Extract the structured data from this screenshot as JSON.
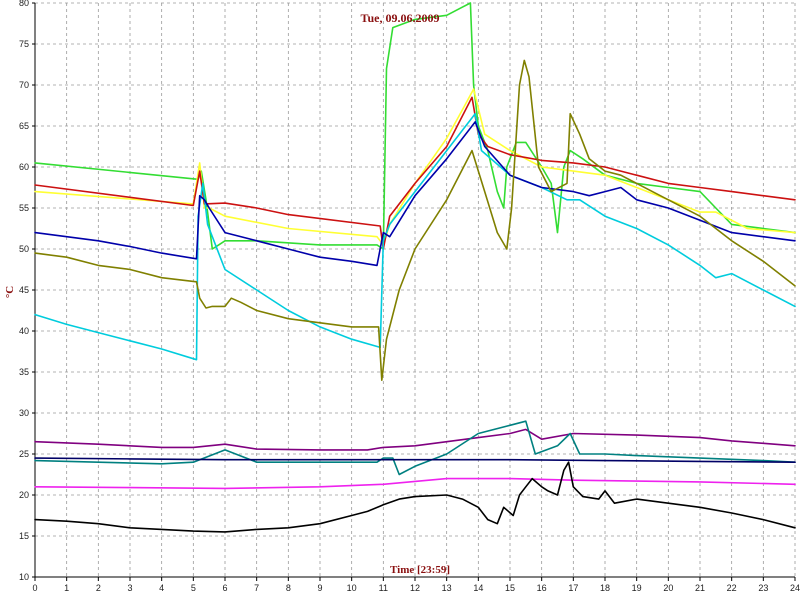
{
  "chart_data": {
    "type": "line",
    "title": "Tue, 09.06.2009",
    "xlabel": "Time [23:59]",
    "ylabel": "°C",
    "xlim": [
      0,
      24
    ],
    "ylim": [
      10,
      80
    ],
    "x_ticks": [
      0,
      1,
      2,
      3,
      4,
      5,
      6,
      7,
      8,
      9,
      10,
      11,
      12,
      13,
      14,
      15,
      16,
      17,
      18,
      19,
      20,
      21,
      22,
      23,
      24
    ],
    "y_ticks": [
      10,
      15,
      20,
      25,
      30,
      35,
      40,
      45,
      50,
      55,
      60,
      65,
      70,
      75,
      80
    ],
    "grid": true,
    "series": [
      {
        "color": "#33dd33",
        "points": [
          [
            0,
            60.5
          ],
          [
            5.15,
            58.5
          ],
          [
            5.25,
            59.5
          ],
          [
            5.4,
            56
          ],
          [
            5.6,
            50
          ],
          [
            5.8,
            50.5
          ],
          [
            6.0,
            51
          ],
          [
            7,
            51
          ],
          [
            9,
            50.5
          ],
          [
            10.8,
            50.5
          ],
          [
            11.0,
            50
          ],
          [
            11.1,
            72
          ],
          [
            11.3,
            77
          ],
          [
            12,
            78
          ],
          [
            13,
            78.5
          ],
          [
            13.5,
            79.5
          ],
          [
            13.75,
            80
          ],
          [
            13.85,
            70
          ],
          [
            14.0,
            65
          ],
          [
            14.3,
            62
          ],
          [
            14.6,
            57
          ],
          [
            14.8,
            55
          ],
          [
            14.9,
            60
          ],
          [
            15.2,
            63
          ],
          [
            15.5,
            63
          ],
          [
            16.0,
            60
          ],
          [
            16.3,
            58
          ],
          [
            16.5,
            52
          ],
          [
            16.7,
            60
          ],
          [
            16.9,
            62
          ],
          [
            17.3,
            61
          ],
          [
            18,
            59
          ],
          [
            19,
            58
          ],
          [
            20,
            57.5
          ],
          [
            21,
            57
          ],
          [
            21.5,
            55
          ],
          [
            22,
            53
          ],
          [
            23,
            52.5
          ],
          [
            24,
            52
          ]
        ]
      },
      {
        "color": "#ffff33",
        "points": [
          [
            0,
            57
          ],
          [
            5.0,
            55.5
          ],
          [
            5.2,
            60.5
          ],
          [
            5.35,
            55
          ],
          [
            5.5,
            55
          ],
          [
            6,
            54
          ],
          [
            8,
            52.5
          ],
          [
            10.8,
            51.5
          ],
          [
            11,
            50.5
          ],
          [
            11.2,
            53
          ],
          [
            12,
            58
          ],
          [
            13,
            63.5
          ],
          [
            13.5,
            67
          ],
          [
            13.85,
            69.5
          ],
          [
            14.2,
            64
          ],
          [
            15,
            62
          ],
          [
            16,
            60
          ],
          [
            17,
            59.5
          ],
          [
            18,
            59
          ],
          [
            19,
            57.5
          ],
          [
            20,
            56
          ],
          [
            21,
            54.5
          ],
          [
            21.5,
            54.5
          ],
          [
            22.5,
            52.5
          ],
          [
            24,
            52
          ]
        ]
      },
      {
        "color": "#cc1111",
        "points": [
          [
            0,
            57.8
          ],
          [
            5.0,
            55.3
          ],
          [
            5.2,
            59.5
          ],
          [
            5.35,
            55.5
          ],
          [
            6,
            55.6
          ],
          [
            7,
            55
          ],
          [
            8,
            54.2
          ],
          [
            10.9,
            52.8
          ],
          [
            11,
            50
          ],
          [
            11.2,
            54
          ],
          [
            12,
            58
          ],
          [
            13,
            62.5
          ],
          [
            13.8,
            68.5
          ],
          [
            14.0,
            64
          ],
          [
            14.3,
            62.5
          ],
          [
            15,
            61.5
          ],
          [
            16,
            60.8
          ],
          [
            17,
            60.5
          ],
          [
            18,
            60
          ],
          [
            19,
            59
          ],
          [
            20,
            58
          ],
          [
            21,
            57.5
          ],
          [
            22,
            57
          ],
          [
            23,
            56.5
          ],
          [
            24,
            56
          ]
        ]
      },
      {
        "color": "#00ccdd",
        "points": [
          [
            0,
            42
          ],
          [
            1,
            40.8
          ],
          [
            2,
            39.8
          ],
          [
            3,
            38.8
          ],
          [
            4,
            37.8
          ],
          [
            5.1,
            36.5
          ],
          [
            5.15,
            54
          ],
          [
            5.3,
            58
          ],
          [
            5.45,
            53
          ],
          [
            6,
            47.5
          ],
          [
            7,
            45
          ],
          [
            8,
            42.5
          ],
          [
            9,
            40.5
          ],
          [
            10,
            39
          ],
          [
            10.9,
            38
          ],
          [
            11,
            51
          ],
          [
            11.2,
            53
          ],
          [
            12,
            57
          ],
          [
            13,
            62
          ],
          [
            13.9,
            66.5
          ],
          [
            14.1,
            62
          ],
          [
            15,
            59
          ],
          [
            16,
            57.5
          ],
          [
            16.8,
            56
          ],
          [
            17.2,
            56
          ],
          [
            18,
            54
          ],
          [
            19,
            52.5
          ],
          [
            20,
            50.5
          ],
          [
            21,
            48
          ],
          [
            21.5,
            46.5
          ],
          [
            22,
            47
          ],
          [
            23,
            45
          ],
          [
            24,
            43
          ]
        ]
      },
      {
        "color": "#0000aa",
        "points": [
          [
            0,
            52
          ],
          [
            1,
            51.5
          ],
          [
            2,
            51
          ],
          [
            3,
            50.3
          ],
          [
            4,
            49.5
          ],
          [
            5.1,
            48.8
          ],
          [
            5.2,
            56.5
          ],
          [
            5.35,
            56
          ],
          [
            5.5,
            55
          ],
          [
            6,
            52
          ],
          [
            7,
            51
          ],
          [
            8,
            50
          ],
          [
            9,
            49
          ],
          [
            10,
            48.5
          ],
          [
            10.8,
            48
          ],
          [
            11.0,
            52
          ],
          [
            11.2,
            51.5
          ],
          [
            12,
            56.5
          ],
          [
            13,
            61
          ],
          [
            13.9,
            65.5
          ],
          [
            14.2,
            62.5
          ],
          [
            15,
            59
          ],
          [
            16,
            57.5
          ],
          [
            17,
            57
          ],
          [
            17.5,
            56.5
          ],
          [
            18,
            57
          ],
          [
            18.5,
            57.5
          ],
          [
            19,
            56
          ],
          [
            20,
            55
          ],
          [
            21,
            53.5
          ],
          [
            22,
            52
          ],
          [
            23,
            51.5
          ],
          [
            24,
            51
          ]
        ]
      },
      {
        "color": "#808000",
        "points": [
          [
            0,
            49.5
          ],
          [
            1,
            49
          ],
          [
            2,
            48
          ],
          [
            3,
            47.5
          ],
          [
            4,
            46.5
          ],
          [
            5.1,
            46
          ],
          [
            5.2,
            44
          ],
          [
            5.4,
            42.8
          ],
          [
            5.6,
            43
          ],
          [
            6,
            43
          ],
          [
            6.2,
            44
          ],
          [
            6.5,
            43.5
          ],
          [
            7,
            42.5
          ],
          [
            8,
            41.5
          ],
          [
            9,
            41
          ],
          [
            10,
            40.5
          ],
          [
            10.85,
            40.5
          ],
          [
            10.95,
            34
          ],
          [
            11.1,
            39
          ],
          [
            11.5,
            45
          ],
          [
            12,
            50
          ],
          [
            13,
            56
          ],
          [
            13.8,
            62
          ],
          [
            14.2,
            57
          ],
          [
            14.6,
            52
          ],
          [
            14.9,
            50
          ],
          [
            15.05,
            55
          ],
          [
            15.3,
            70
          ],
          [
            15.45,
            73
          ],
          [
            15.6,
            71
          ],
          [
            15.9,
            60
          ],
          [
            16.3,
            57
          ],
          [
            16.8,
            58
          ],
          [
            16.9,
            66.5
          ],
          [
            17.2,
            64
          ],
          [
            17.5,
            61
          ],
          [
            18,
            59.5
          ],
          [
            18.5,
            59
          ],
          [
            19,
            58
          ],
          [
            20,
            56
          ],
          [
            21,
            54
          ],
          [
            22,
            51
          ],
          [
            23,
            48.5
          ],
          [
            24,
            45.5
          ]
        ]
      },
      {
        "color": "#800080",
        "points": [
          [
            0,
            26.5
          ],
          [
            2,
            26.2
          ],
          [
            4,
            25.8
          ],
          [
            5,
            25.8
          ],
          [
            6,
            26.2
          ],
          [
            7,
            25.6
          ],
          [
            9,
            25.5
          ],
          [
            10.5,
            25.5
          ],
          [
            11,
            25.8
          ],
          [
            12,
            26
          ],
          [
            13,
            26.5
          ],
          [
            14,
            27
          ],
          [
            15,
            27.5
          ],
          [
            15.5,
            28
          ],
          [
            16,
            26.8
          ],
          [
            17,
            27.5
          ],
          [
            19,
            27.3
          ],
          [
            21,
            27
          ],
          [
            22,
            26.6
          ],
          [
            23,
            26.3
          ],
          [
            24,
            26
          ]
        ]
      },
      {
        "color": "#008080",
        "points": [
          [
            0,
            24.2
          ],
          [
            2,
            24
          ],
          [
            4,
            23.8
          ],
          [
            5,
            24
          ],
          [
            6,
            25.5
          ],
          [
            7,
            24
          ],
          [
            9,
            24
          ],
          [
            10.8,
            24
          ],
          [
            11,
            24.5
          ],
          [
            11.3,
            24.5
          ],
          [
            11.5,
            22.5
          ],
          [
            12,
            23.5
          ],
          [
            13,
            25
          ],
          [
            14,
            27.5
          ],
          [
            15,
            28.5
          ],
          [
            15.5,
            29
          ],
          [
            15.8,
            25
          ],
          [
            16.5,
            26
          ],
          [
            16.9,
            27.5
          ],
          [
            17.2,
            25
          ],
          [
            18,
            25
          ],
          [
            19,
            24.8
          ],
          [
            21,
            24.5
          ],
          [
            23,
            24.2
          ],
          [
            24,
            24
          ]
        ]
      },
      {
        "color": "#000066",
        "points": [
          [
            0,
            24.5
          ],
          [
            3,
            24.4
          ],
          [
            6,
            24.3
          ],
          [
            9,
            24.3
          ],
          [
            12,
            24.3
          ],
          [
            15,
            24.3
          ],
          [
            18,
            24.2
          ],
          [
            21,
            24.1
          ],
          [
            24,
            24
          ]
        ]
      },
      {
        "color": "#ee22ee",
        "points": [
          [
            0,
            21
          ],
          [
            3,
            20.9
          ],
          [
            6,
            20.8
          ],
          [
            9,
            21
          ],
          [
            11,
            21.3
          ],
          [
            13,
            22
          ],
          [
            15,
            22
          ],
          [
            17,
            21.8
          ],
          [
            19,
            21.7
          ],
          [
            21,
            21.6
          ],
          [
            24,
            21.3
          ]
        ]
      },
      {
        "color": "#000000",
        "points": [
          [
            0,
            17
          ],
          [
            1,
            16.8
          ],
          [
            2,
            16.5
          ],
          [
            3,
            16
          ],
          [
            4,
            15.8
          ],
          [
            5,
            15.6
          ],
          [
            6,
            15.5
          ],
          [
            7,
            15.8
          ],
          [
            8,
            16
          ],
          [
            9,
            16.5
          ],
          [
            10,
            17.5
          ],
          [
            10.5,
            18
          ],
          [
            11,
            18.8
          ],
          [
            11.5,
            19.5
          ],
          [
            12,
            19.8
          ],
          [
            13,
            20
          ],
          [
            13.5,
            19.5
          ],
          [
            14,
            18.5
          ],
          [
            14.3,
            17
          ],
          [
            14.6,
            16.5
          ],
          [
            14.8,
            18.5
          ],
          [
            15.1,
            17.5
          ],
          [
            15.3,
            20
          ],
          [
            15.5,
            21
          ],
          [
            15.7,
            22
          ],
          [
            16.0,
            21
          ],
          [
            16.2,
            20.5
          ],
          [
            16.5,
            20
          ],
          [
            16.7,
            23
          ],
          [
            16.85,
            24
          ],
          [
            17.0,
            21
          ],
          [
            17.3,
            19.8
          ],
          [
            17.8,
            19.5
          ],
          [
            18,
            20.5
          ],
          [
            18.3,
            19
          ],
          [
            19,
            19.5
          ],
          [
            20,
            19
          ],
          [
            21,
            18.5
          ],
          [
            22,
            17.8
          ],
          [
            23,
            17
          ],
          [
            24,
            16
          ]
        ]
      }
    ]
  }
}
